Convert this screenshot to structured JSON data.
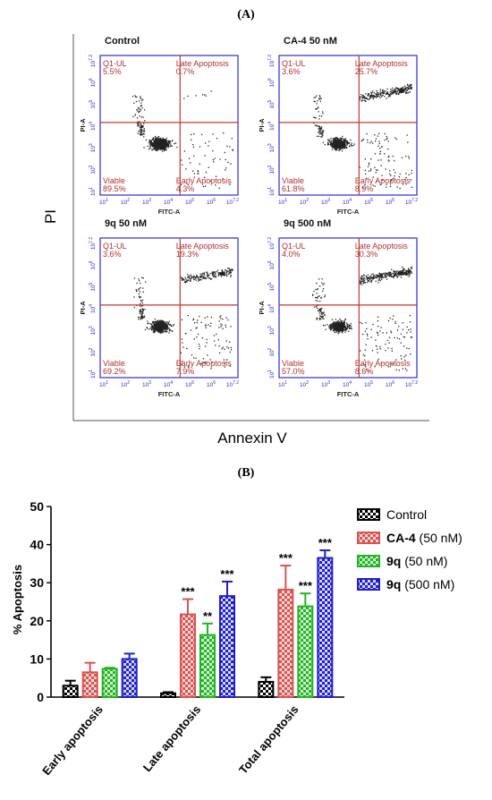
{
  "panel_a": {
    "label": "(A)",
    "y_axis_label": "PI",
    "x_axis_label": "Annexin V",
    "plots": [
      {
        "title": "Control",
        "ul_label": "Q1-UL",
        "ul": "5.5%",
        "ur_label": "Late Apoptosis",
        "ur": "0.7%",
        "ll_label": "Viable",
        "ll": "89.5%",
        "lr_label": "Early Apoptosis",
        "lr": "4.3%",
        "xlabel": "FITC-A",
        "ylabel": "PI-A"
      },
      {
        "title": "CA-4 50 nM",
        "ul_label": "Q1-UL",
        "ul": "3.6%",
        "ur_label": "Late Apoptosis",
        "ur": "25.7%",
        "ll_label": "Viable",
        "ll": "61.8%",
        "lr_label": "Early Apoptosis",
        "lr": "8.9%",
        "xlabel": "FITC-A",
        "ylabel": "PI-A"
      },
      {
        "title": "9q 50 nM",
        "ul_label": "Q1-UL",
        "ul": "3.6%",
        "ur_label": "Late Apoptosis",
        "ur": "19.3%",
        "ll_label": "Viable",
        "ll": "69.2%",
        "lr_label": "Early Apoptosis",
        "lr": "7.9%",
        "xlabel": "FITC-A",
        "ylabel": "PI-A"
      },
      {
        "title": "9q 500 nM",
        "ul_label": "Q1-UL",
        "ul": "4.0%",
        "ur_label": "Late Apoptosis",
        "ur": "30.3%",
        "ll_label": "Viable",
        "ll": "57.0%",
        "lr_label": "Early Apoptosis",
        "lr": "8.6%",
        "xlabel": "FITC-A",
        "ylabel": "PI-A"
      }
    ],
    "x_ticks": [
      "10^1",
      "10^2",
      "10^3",
      "10^4",
      "10^5",
      "10^6",
      "10^7.2"
    ],
    "y_ticks": [
      "10^1",
      "10^2",
      "10^3",
      "10^4",
      "10^5",
      "10^6",
      "10^7.2"
    ]
  },
  "chart_data": {
    "label": "(B)",
    "type": "bar",
    "categories": [
      "Early apoptosis",
      "Late apoptosis",
      "Total apoptosis"
    ],
    "ylabel": "% Apoptosis",
    "xlabel": "",
    "ylim": [
      0,
      50
    ],
    "yticks": [
      0,
      10,
      20,
      30,
      40,
      50
    ],
    "legend_position": "right",
    "series": [
      {
        "name": "Control",
        "name_bold": "Control",
        "name_suffix": "",
        "color": "#000000",
        "fill_alt": "#ffffff",
        "values": [
          3.0,
          1.0,
          4.0
        ],
        "errors": [
          1.3,
          0.3,
          1.2
        ],
        "sig": [
          "",
          "",
          ""
        ]
      },
      {
        "name": "CA-4 (50 nM)",
        "name_bold": "CA-4",
        "name_suffix": " (50 nM)",
        "color": "#d9534f",
        "fill_alt": "#f4dada",
        "values": [
          6.5,
          21.7,
          28.2
        ],
        "errors": [
          2.5,
          4.0,
          6.3
        ],
        "sig": [
          "",
          "***",
          "***"
        ]
      },
      {
        "name": "9q (50 nM)",
        "name_bold": "9q",
        "name_suffix": " (50 nM)",
        "color": "#22b522",
        "fill_alt": "#d7f4d7",
        "values": [
          7.4,
          16.3,
          23.8
        ],
        "errors": [
          0.3,
          3.0,
          3.4
        ],
        "sig": [
          "",
          "**",
          "***"
        ]
      },
      {
        "name": "9q (500 nM)",
        "name_bold": "9q",
        "name_suffix": " (500 nM)",
        "color": "#1f1fcc",
        "fill_alt": "#dadaf8",
        "values": [
          10.0,
          26.5,
          36.5
        ],
        "errors": [
          1.4,
          3.8,
          2.0
        ],
        "sig": [
          "",
          "***",
          "***"
        ]
      }
    ]
  }
}
